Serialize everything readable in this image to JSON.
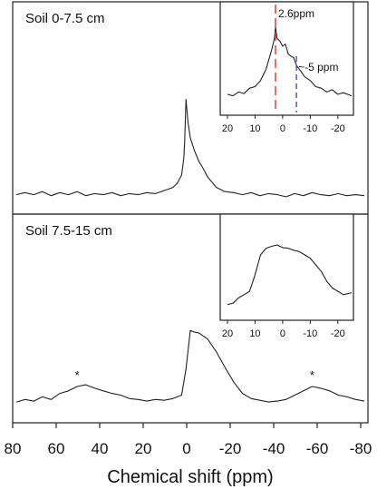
{
  "chart_data": [
    {
      "type": "line",
      "panel": "top",
      "title": "Soil 0-7.5 cm",
      "xlabel": "Chemical shift (ppm)",
      "xlim": [
        80,
        -80
      ],
      "series": [
        {
          "x": [
            80,
            76,
            72,
            68,
            64,
            60,
            56,
            52,
            48,
            44,
            40,
            36,
            32,
            28,
            24,
            20,
            16,
            12,
            8,
            6,
            4,
            3,
            2.6,
            2,
            1,
            0,
            -2,
            -4,
            -6,
            -8,
            -10,
            -12,
            -16,
            -20,
            -24,
            -28,
            -32,
            -36,
            -40,
            -44,
            -48,
            -52,
            -56,
            -60,
            -64,
            -68,
            -72,
            -76,
            -80
          ],
          "y": [
            0.03,
            0.05,
            0.03,
            0.06,
            0.02,
            0.05,
            0.03,
            0.06,
            0.02,
            0.04,
            0.03,
            0.05,
            0.02,
            0.04,
            0.03,
            0.05,
            0.04,
            0.07,
            0.1,
            0.14,
            0.22,
            0.38,
            0.55,
            0.95,
            0.72,
            0.58,
            0.45,
            0.35,
            0.28,
            0.2,
            0.15,
            0.1,
            0.06,
            0.05,
            0.03,
            0.05,
            0.02,
            0.04,
            0.03,
            0.01,
            0.04,
            0.02,
            0.05,
            0.03,
            0.02,
            0.04,
            0.02,
            0.03,
            0.02
          ]
        }
      ],
      "inset": {
        "xlim": [
          20,
          -25
        ],
        "xticks": [
          20,
          10,
          0,
          -10,
          -20
        ],
        "annotations": [
          {
            "text": "2.6ppm",
            "x": 2.6,
            "color": "#e03030",
            "style": "dashed"
          },
          {
            "text": "~-5 ppm",
            "x": -5,
            "color": "#3a50d8",
            "style": "dashed"
          }
        ],
        "series": [
          {
            "x": [
              20,
              18,
              16,
              14,
              12,
              10,
              8,
              6,
              4,
              3,
              2.6,
              2,
              1,
              0,
              -1,
              -2,
              -3,
              -4,
              -5,
              -6,
              -8,
              -10,
              -12,
              -14,
              -16,
              -18,
              -20,
              -22,
              -25
            ],
            "y": [
              0.12,
              0.1,
              0.15,
              0.13,
              0.2,
              0.22,
              0.3,
              0.45,
              0.7,
              0.85,
              1.0,
              0.85,
              0.82,
              0.75,
              0.78,
              0.65,
              0.62,
              0.6,
              0.5,
              0.45,
              0.35,
              0.3,
              0.22,
              0.2,
              0.15,
              0.18,
              0.12,
              0.14,
              0.1
            ]
          }
        ]
      }
    },
    {
      "type": "line",
      "panel": "bottom",
      "title": "Soil 7.5-15 cm",
      "xlabel": "Chemical shift (ppm)",
      "xlim": [
        80,
        -80
      ],
      "xticks": [
        80,
        60,
        40,
        20,
        0,
        -20,
        -40,
        -60,
        -80
      ],
      "annotations": [
        {
          "text": "*",
          "x": 52
        },
        {
          "text": "*",
          "x": -56
        }
      ],
      "series": [
        {
          "x": [
            80,
            76,
            72,
            68,
            64,
            60,
            56,
            52,
            48,
            44,
            40,
            36,
            32,
            28,
            24,
            20,
            16,
            12,
            8,
            4,
            2,
            0,
            -2,
            -4,
            -8,
            -12,
            -16,
            -20,
            -24,
            -28,
            -32,
            -36,
            -40,
            -44,
            -48,
            -52,
            -56,
            -60,
            -64,
            -68,
            -72,
            -76,
            -80
          ],
          "y": [
            0.02,
            0.05,
            0.03,
            0.08,
            0.05,
            0.12,
            0.15,
            0.2,
            0.22,
            0.18,
            0.15,
            0.12,
            0.1,
            0.06,
            0.05,
            0.03,
            0.05,
            0.04,
            0.06,
            0.1,
            0.4,
            0.85,
            0.83,
            0.82,
            0.75,
            0.6,
            0.42,
            0.25,
            0.12,
            0.06,
            0.04,
            0.02,
            0.03,
            0.05,
            0.1,
            0.15,
            0.2,
            0.18,
            0.15,
            0.1,
            0.08,
            0.05,
            0.03
          ]
        }
      ],
      "inset": {
        "xlim": [
          20,
          -25
        ],
        "xticks": [
          20,
          10,
          0,
          -10,
          -20
        ],
        "series": [
          {
            "x": [
              20,
              18,
              16,
              14,
              12,
              10,
              8,
              6,
              4,
              2,
              0,
              -2,
              -4,
              -6,
              -8,
              -10,
              -12,
              -14,
              -16,
              -18,
              -20,
              -22,
              -25
            ],
            "y": [
              0.1,
              0.12,
              0.2,
              0.25,
              0.3,
              0.55,
              0.85,
              0.95,
              0.98,
              1.0,
              0.96,
              0.95,
              0.92,
              0.9,
              0.85,
              0.8,
              0.7,
              0.6,
              0.45,
              0.35,
              0.3,
              0.25,
              0.28
            ]
          }
        ]
      }
    }
  ]
}
